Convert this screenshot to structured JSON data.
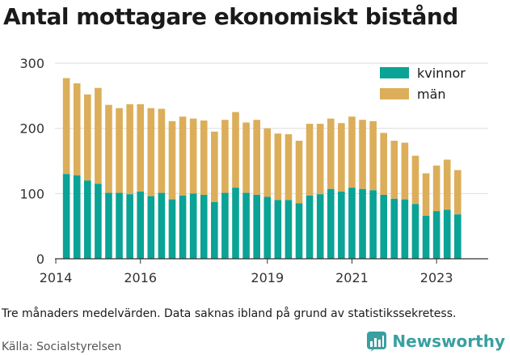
{
  "title": "Antal mottagare ekonomiskt bistånd",
  "caption": "Tre månaders medelvärden. Data saknas ibland på grund av statistikssekretess.",
  "source": "Källa: Socialstyrelsen",
  "brand": {
    "name": "Newsworthy",
    "icon": "newsworthy-logo-icon"
  },
  "colors": {
    "kvinnor": "#0aa396",
    "man": "#dcae5a",
    "grid": "#dddddd"
  },
  "chart_data": {
    "type": "bar",
    "stacked": true,
    "y_ticks": [
      0,
      100,
      200,
      300
    ],
    "ylim": [
      0,
      310
    ],
    "x_ticks": [
      2014,
      2016,
      2019,
      2021,
      2023
    ],
    "x_range": [
      2013.98,
      2024.22
    ],
    "legend": "top-right",
    "grid": true,
    "series": [
      {
        "name": "kvinnor",
        "color": "#0aa396"
      },
      {
        "name": "män",
        "color": "#dcae5a"
      }
    ],
    "points": [
      {
        "x": 2014.25,
        "kvinnor": 130,
        "man": 147
      },
      {
        "x": 2014.5,
        "kvinnor": 128,
        "man": 141
      },
      {
        "x": 2014.75,
        "kvinnor": 120,
        "man": 132
      },
      {
        "x": 2015.0,
        "kvinnor": 115,
        "man": 147
      },
      {
        "x": 2015.25,
        "kvinnor": 101,
        "man": 135
      },
      {
        "x": 2015.5,
        "kvinnor": 101,
        "man": 130
      },
      {
        "x": 2015.75,
        "kvinnor": 99,
        "man": 138
      },
      {
        "x": 2016.0,
        "kvinnor": 103,
        "man": 134
      },
      {
        "x": 2016.25,
        "kvinnor": 96,
        "man": 135
      },
      {
        "x": 2016.5,
        "kvinnor": 101,
        "man": 129
      },
      {
        "x": 2016.75,
        "kvinnor": 91,
        "man": 120
      },
      {
        "x": 2017.0,
        "kvinnor": 97,
        "man": 121
      },
      {
        "x": 2017.25,
        "kvinnor": 100,
        "man": 115
      },
      {
        "x": 2017.5,
        "kvinnor": 98,
        "man": 114
      },
      {
        "x": 2017.75,
        "kvinnor": 87,
        "man": 108
      },
      {
        "x": 2018.0,
        "kvinnor": 101,
        "man": 112
      },
      {
        "x": 2018.25,
        "kvinnor": 109,
        "man": 116
      },
      {
        "x": 2018.5,
        "kvinnor": 101,
        "man": 108
      },
      {
        "x": 2018.75,
        "kvinnor": 98,
        "man": 115
      },
      {
        "x": 2019.0,
        "kvinnor": 95,
        "man": 105
      },
      {
        "x": 2019.25,
        "kvinnor": 90,
        "man": 102
      },
      {
        "x": 2019.5,
        "kvinnor": 90,
        "man": 101
      },
      {
        "x": 2019.75,
        "kvinnor": 85,
        "man": 96
      },
      {
        "x": 2020.0,
        "kvinnor": 97,
        "man": 110
      },
      {
        "x": 2020.25,
        "kvinnor": 99,
        "man": 108
      },
      {
        "x": 2020.5,
        "kvinnor": 107,
        "man": 108
      },
      {
        "x": 2020.75,
        "kvinnor": 103,
        "man": 105
      },
      {
        "x": 2021.0,
        "kvinnor": 109,
        "man": 109
      },
      {
        "x": 2021.25,
        "kvinnor": 107,
        "man": 106
      },
      {
        "x": 2021.5,
        "kvinnor": 105,
        "man": 106
      },
      {
        "x": 2021.75,
        "kvinnor": 98,
        "man": 95
      },
      {
        "x": 2022.0,
        "kvinnor": 92,
        "man": 89
      },
      {
        "x": 2022.25,
        "kvinnor": 91,
        "man": 87
      },
      {
        "x": 2022.5,
        "kvinnor": 84,
        "man": 74
      },
      {
        "x": 2022.75,
        "kvinnor": 66,
        "man": 65
      },
      {
        "x": 2023.0,
        "kvinnor": 73,
        "man": 70
      },
      {
        "x": 2023.25,
        "kvinnor": 75,
        "man": 77
      },
      {
        "x": 2023.5,
        "kvinnor": 68,
        "man": 68
      }
    ]
  }
}
